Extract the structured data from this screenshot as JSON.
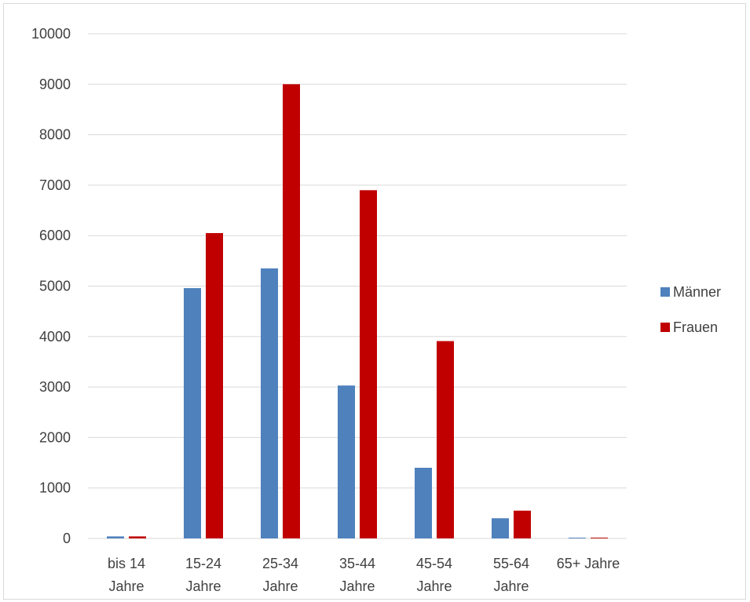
{
  "chart_data": {
    "type": "bar",
    "categories": [
      [
        "bis 14",
        "Jahre"
      ],
      [
        "15-24",
        "Jahre"
      ],
      [
        "25-34",
        "Jahre"
      ],
      [
        "35-44",
        "Jahre"
      ],
      [
        "45-54",
        "Jahre"
      ],
      [
        "55-64",
        "Jahre"
      ],
      [
        "65+ Jahre"
      ]
    ],
    "series": [
      {
        "name": "Männer",
        "color": "#4f81bd",
        "values": [
          40,
          4960,
          5350,
          3030,
          1400,
          400,
          15
        ]
      },
      {
        "name": "Frauen",
        "color": "#c00000",
        "values": [
          40,
          6050,
          9000,
          6900,
          3910,
          550,
          15
        ]
      }
    ],
    "ylim": [
      0,
      10000
    ],
    "yticks": [
      0,
      1000,
      2000,
      3000,
      4000,
      5000,
      6000,
      7000,
      8000,
      9000,
      10000
    ],
    "grid": true,
    "legend": "right",
    "colors": {
      "grid": "#d9d9d9",
      "text": "#404040"
    }
  }
}
